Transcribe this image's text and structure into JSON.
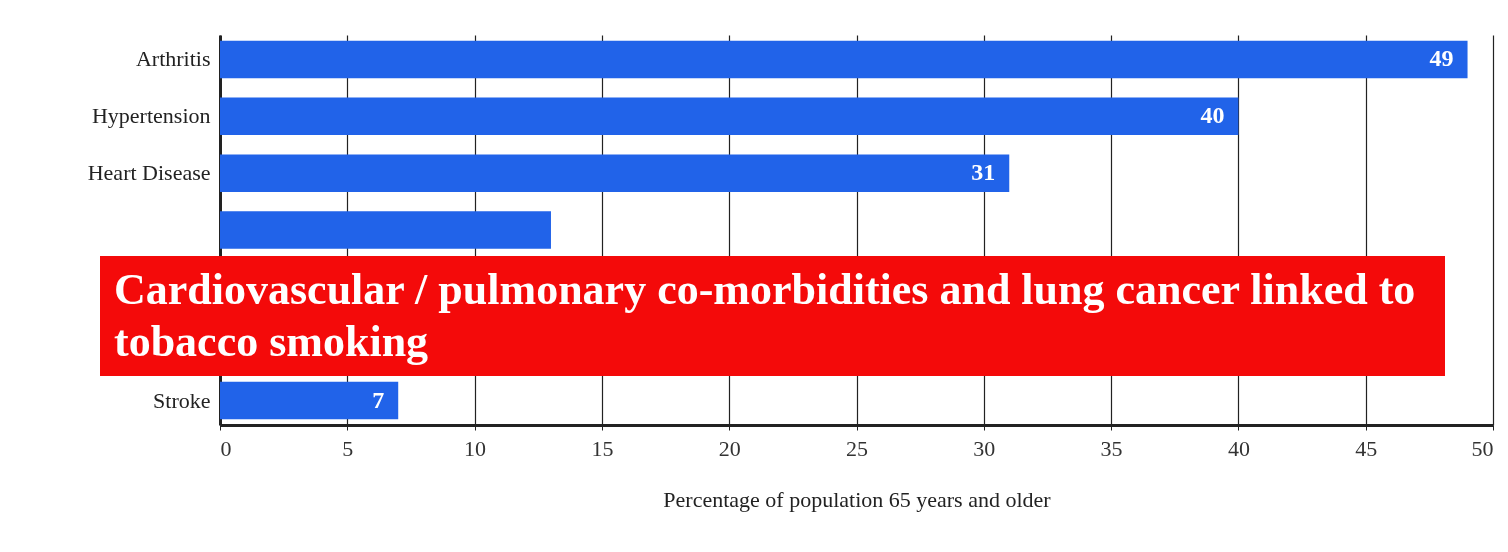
{
  "chart_data": {
    "type": "bar",
    "orientation": "horizontal",
    "categories": [
      "Arthritis",
      "Hypertension",
      "Heart Disease",
      null,
      null,
      null,
      "Stroke"
    ],
    "values": [
      49,
      40,
      31,
      13,
      null,
      null,
      7
    ],
    "value_labels": [
      "49",
      "40",
      "31",
      null,
      null,
      null,
      "7"
    ],
    "color": "#2163e9",
    "xlabel": "Percentage of population 65 years and older",
    "xlim": [
      0,
      50
    ],
    "xticks": [
      0,
      5,
      10,
      15,
      20,
      25,
      30,
      35,
      40,
      45,
      50
    ],
    "grid": "x",
    "annotations": [
      "Cardiovascular / pulmonary co-morbidities and lung cancer linked to tobacco smoking"
    ]
  }
}
